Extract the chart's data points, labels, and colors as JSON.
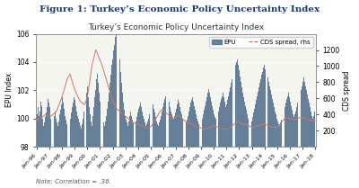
{
  "figure_title": "Figure 1: Turkey’s Economic Policy Uncertainty Index",
  "chart_title": "Turkey’s Economic Policy Uncertainty Index",
  "note": "Note: Correlation = .36.",
  "xlabel": "",
  "ylabel_left": "EPU Index",
  "ylabel_right": "CDS spread",
  "epu_label": "EPU",
  "cds_label": "CDS spread, rhs",
  "ylim_left": [
    98,
    106
  ],
  "ylim_right": [
    0,
    1400
  ],
  "yticks_left": [
    98,
    100,
    102,
    104,
    106
  ],
  "yticks_right": [
    200,
    400,
    600,
    800,
    1000,
    1200
  ],
  "bar_color": "#4d6b8a",
  "cds_color": "#c97a6a",
  "bar_alpha": 0.85,
  "cds_linewidth": 0.8,
  "figure_title_color": "#1f3864",
  "chart_title_color": "#333333",
  "background_color": "#f5f5f0",
  "x_ticklabels": [
    "Jan-96",
    "Jan-97",
    "Jan-98",
    "Jan-99",
    "Jan-00",
    "Jan-01",
    "Jan-02",
    "Jan-03",
    "Jan-04",
    "Jan-05",
    "Jan-06",
    "Jan-07",
    "Jan-08",
    "Jan-09",
    "Jan-10",
    "Jan-11",
    "Jan-12",
    "Jan-13",
    "Jan-14",
    "Jan-15",
    "Jan-16",
    "Jan-17",
    "Jan-18"
  ],
  "epu_values": [
    100.3,
    100.8,
    100.2,
    100.5,
    101.2,
    100.9,
    100.0,
    99.5,
    99.7,
    100.1,
    100.4,
    100.8,
    101.4,
    101.1,
    100.8,
    100.0,
    99.6,
    99.8,
    100.2,
    100.5,
    100.0,
    99.7,
    99.5,
    99.8,
    100.3,
    100.6,
    101.0,
    101.5,
    101.1,
    100.7,
    100.2,
    99.9,
    99.6,
    99.5,
    99.7,
    100.0,
    100.4,
    100.8,
    101.1,
    101.5,
    101.3,
    100.9,
    100.5,
    100.2,
    100.0,
    99.7,
    99.5,
    99.3,
    99.6,
    100.0,
    100.5,
    101.2,
    101.8,
    102.3,
    101.5,
    100.8,
    100.3,
    99.8,
    99.5,
    100.2,
    100.8,
    101.5,
    102.0,
    102.8,
    103.2,
    102.5,
    101.8,
    101.2,
    100.6,
    100.0,
    99.7,
    99.5,
    99.8,
    100.2,
    100.7,
    101.2,
    101.8,
    102.5,
    103.1,
    103.8,
    104.2,
    104.8,
    105.2,
    105.8,
    106.0,
    105.5,
    105.0,
    104.2,
    103.3,
    102.5,
    101.8,
    101.1,
    100.6,
    100.2,
    99.9,
    99.7,
    99.5,
    99.8,
    100.2,
    100.5,
    100.2,
    99.9,
    99.7,
    99.5,
    99.8,
    100.1,
    100.4,
    100.7,
    100.9,
    101.1,
    100.8,
    100.5,
    100.2,
    100.0,
    99.7,
    99.5,
    99.6,
    99.8,
    100.0,
    100.3,
    100.5,
    100.8,
    101.0,
    100.7,
    100.4,
    100.1,
    99.8,
    99.6,
    99.5,
    99.7,
    99.9,
    100.2,
    100.5,
    100.8,
    101.1,
    101.4,
    101.6,
    101.8,
    101.5,
    101.2,
    100.8,
    100.5,
    100.3,
    100.1,
    100.0,
    100.2,
    100.4,
    100.7,
    101.0,
    101.3,
    101.1,
    100.8,
    100.5,
    100.3,
    100.0,
    99.8,
    99.6,
    99.7,
    99.9,
    100.2,
    100.5,
    100.8,
    101.1,
    101.3,
    101.5,
    101.2,
    100.9,
    100.6,
    100.3,
    100.0,
    99.8,
    99.6,
    99.5,
    99.7,
    100.0,
    100.3,
    100.6,
    100.9,
    101.2,
    101.5,
    101.8,
    102.1,
    101.8,
    101.5,
    101.2,
    100.9,
    100.6,
    100.3,
    100.1,
    100.0,
    100.2,
    100.5,
    100.8,
    101.1,
    101.4,
    101.6,
    101.8,
    101.5,
    101.2,
    100.8,
    101.0,
    101.3,
    101.6,
    101.9,
    102.2,
    102.5,
    102.8,
    103.1,
    103.4,
    103.8,
    104.0,
    104.2,
    103.8,
    103.4,
    103.0,
    102.6,
    102.2,
    101.8,
    101.5,
    101.2,
    100.9,
    100.6,
    100.3,
    100.0,
    99.8,
    99.6,
    99.8,
    100.1,
    100.4,
    100.7,
    101.0,
    101.3,
    101.6,
    101.9,
    102.2,
    102.5,
    102.8,
    103.1,
    103.3,
    103.6,
    103.8,
    103.5,
    103.2,
    102.9,
    102.6,
    102.3,
    102.0,
    101.7,
    101.4,
    101.1,
    100.8,
    100.5,
    100.3,
    100.0,
    99.8,
    99.6,
    99.5,
    99.7,
    99.9,
    100.2,
    100.5,
    100.8,
    101.1,
    101.4,
    101.6,
    101.8,
    101.5,
    101.2,
    100.9,
    100.6,
    100.3,
    100.1,
    100.3,
    100.5,
    100.8,
    101.1,
    101.4,
    101.7,
    102.0,
    102.3,
    102.6,
    102.9,
    102.6,
    102.3,
    102.0,
    101.7,
    101.4,
    101.1,
    100.8,
    100.5,
    100.2,
    100.0,
    100.2,
    100.5
  ],
  "cds_values": [
    350,
    340,
    330,
    340,
    350,
    360,
    370,
    380,
    390,
    400,
    410,
    400,
    390,
    380,
    370,
    380,
    390,
    400,
    410,
    420,
    430,
    450,
    480,
    510,
    540,
    570,
    600,
    640,
    680,
    720,
    760,
    800,
    840,
    860,
    880,
    900,
    860,
    820,
    780,
    740,
    710,
    680,
    650,
    620,
    600,
    580,
    560,
    550,
    540,
    530,
    520,
    540,
    570,
    610,
    680,
    760,
    840,
    920,
    1000,
    1050,
    1100,
    1150,
    1200,
    1180,
    1150,
    1120,
    1090,
    1060,
    1030,
    1000,
    960,
    920,
    880,
    840,
    800,
    760,
    720,
    680,
    640,
    600,
    570,
    540,
    510,
    490,
    470,
    460,
    450,
    440,
    430,
    420,
    410,
    400,
    390,
    380,
    370,
    360,
    350,
    340,
    330,
    320,
    310,
    300,
    295,
    290,
    285,
    280,
    280,
    275,
    270,
    265,
    260,
    255,
    250,
    245,
    240,
    235,
    230,
    235,
    240,
    245,
    250,
    260,
    280,
    300,
    320,
    340,
    360,
    380,
    400,
    420,
    440,
    450,
    460,
    450,
    440,
    430,
    420,
    410,
    400,
    390,
    380,
    370,
    360,
    350,
    340,
    350,
    360,
    370,
    380,
    390,
    380,
    370,
    360,
    350,
    340,
    330,
    320,
    310,
    305,
    300,
    295,
    290,
    285,
    280,
    275,
    270,
    265,
    260,
    255,
    250,
    245,
    240,
    235,
    230,
    225,
    220,
    215,
    215,
    220,
    225,
    230,
    235,
    240,
    245,
    250,
    255,
    260,
    260,
    255,
    250,
    245,
    240,
    235,
    230,
    225,
    220,
    218,
    215,
    215,
    215,
    215,
    220,
    225,
    230,
    240,
    250,
    260,
    270,
    280,
    290,
    300,
    310,
    305,
    300,
    295,
    290,
    285,
    280,
    278,
    275,
    272,
    270,
    265,
    260,
    255,
    250,
    245,
    240,
    240,
    242,
    245,
    250,
    255,
    260,
    265,
    268,
    270,
    272,
    275,
    278,
    280,
    275,
    270,
    265,
    260,
    255,
    250,
    248,
    245,
    243,
    240,
    238,
    235,
    240,
    248,
    260,
    275,
    290,
    305,
    320,
    335,
    350,
    355,
    360,
    360,
    358,
    355,
    350,
    345,
    340,
    335,
    330,
    335,
    340,
    345,
    350,
    355,
    360,
    362,
    365,
    362,
    358,
    355,
    350,
    345,
    340,
    335,
    330,
    328,
    325,
    322,
    320,
    322,
    325
  ]
}
